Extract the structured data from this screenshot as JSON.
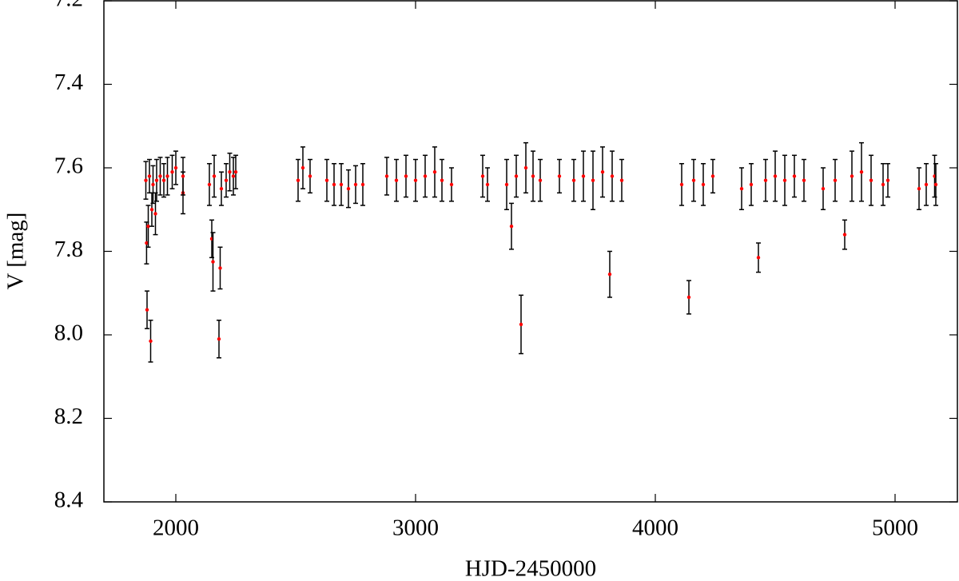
{
  "chart_data": {
    "type": "scatter",
    "x_label": "HJD-2450000",
    "y_label": "V [mag]",
    "xlim": [
      1700,
      5260
    ],
    "xticks": [
      2000,
      3000,
      4000,
      5000
    ],
    "ylim": [
      7.2,
      8.4
    ],
    "y_inverted": true,
    "yticks": [
      7.2,
      7.4,
      7.6,
      7.8,
      {
        "value": 8,
        "label": "8.0"
      },
      8.2,
      8.4
    ],
    "color": "#ff0000",
    "error_color": "#000000",
    "x": [
      1875,
      1890,
      1905,
      1920,
      1935,
      1950,
      1965,
      1985,
      2000,
      2030,
      2030,
      1878,
      1885,
      1900,
      1880,
      1895,
      1915,
      2140,
      2160,
      2190,
      2210,
      2225,
      2240,
      2250,
      2150,
      2155,
      2185,
      2180,
      2510,
      2530,
      2560,
      2630,
      2660,
      2690,
      2720,
      2750,
      2780,
      2880,
      2920,
      2960,
      3000,
      3040,
      3080,
      3110,
      3150,
      3280,
      3300,
      3380,
      3400,
      3420,
      3440,
      3460,
      3490,
      3520,
      3600,
      3660,
      3700,
      3740,
      3780,
      3810,
      3820,
      3860,
      4110,
      4140,
      4160,
      4200,
      4240,
      4360,
      4400,
      4430,
      4460,
      4500,
      4540,
      4580,
      4620,
      4700,
      4750,
      4790,
      4820,
      4860,
      4900,
      4950,
      4970,
      5100,
      5130,
      5165,
      5170
    ],
    "values": [
      7.63,
      7.62,
      7.64,
      7.63,
      7.62,
      7.63,
      7.62,
      7.61,
      7.6,
      7.66,
      7.62,
      7.78,
      7.74,
      7.7,
      7.94,
      8.015,
      7.71,
      7.64,
      7.62,
      7.65,
      7.63,
      7.61,
      7.62,
      7.61,
      7.77,
      7.825,
      7.84,
      8.01,
      7.63,
      7.6,
      7.62,
      7.63,
      7.64,
      7.64,
      7.65,
      7.64,
      7.64,
      7.62,
      7.63,
      7.62,
      7.63,
      7.62,
      7.61,
      7.63,
      7.64,
      7.62,
      7.64,
      7.64,
      7.74,
      7.62,
      7.975,
      7.6,
      7.62,
      7.63,
      7.62,
      7.63,
      7.62,
      7.63,
      7.61,
      7.855,
      7.62,
      7.63,
      7.64,
      7.91,
      7.63,
      7.64,
      7.62,
      7.65,
      7.64,
      7.815,
      7.63,
      7.62,
      7.63,
      7.62,
      7.63,
      7.65,
      7.63,
      7.76,
      7.62,
      7.61,
      7.63,
      7.64,
      7.63,
      7.65,
      7.64,
      7.62,
      7.64
    ],
    "errors": [
      0.045,
      0.04,
      0.045,
      0.05,
      0.045,
      0.04,
      0.045,
      0.04,
      0.04,
      0.05,
      0.045,
      0.05,
      0.05,
      0.04,
      0.045,
      0.05,
      0.05,
      0.05,
      0.05,
      0.04,
      0.04,
      0.045,
      0.045,
      0.04,
      0.045,
      0.07,
      0.05,
      0.045,
      0.05,
      0.05,
      0.04,
      0.05,
      0.05,
      0.05,
      0.045,
      0.045,
      0.05,
      0.045,
      0.05,
      0.05,
      0.05,
      0.05,
      0.06,
      0.05,
      0.04,
      0.05,
      0.04,
      0.06,
      0.055,
      0.05,
      0.07,
      0.06,
      0.06,
      0.05,
      0.04,
      0.05,
      0.06,
      0.07,
      0.06,
      0.055,
      0.06,
      0.05,
      0.05,
      0.04,
      0.05,
      0.05,
      0.04,
      0.05,
      0.05,
      0.035,
      0.05,
      0.06,
      0.06,
      0.05,
      0.05,
      0.05,
      0.05,
      0.035,
      0.06,
      0.07,
      0.06,
      0.05,
      0.04,
      0.05,
      0.05,
      0.05,
      0.05
    ]
  }
}
